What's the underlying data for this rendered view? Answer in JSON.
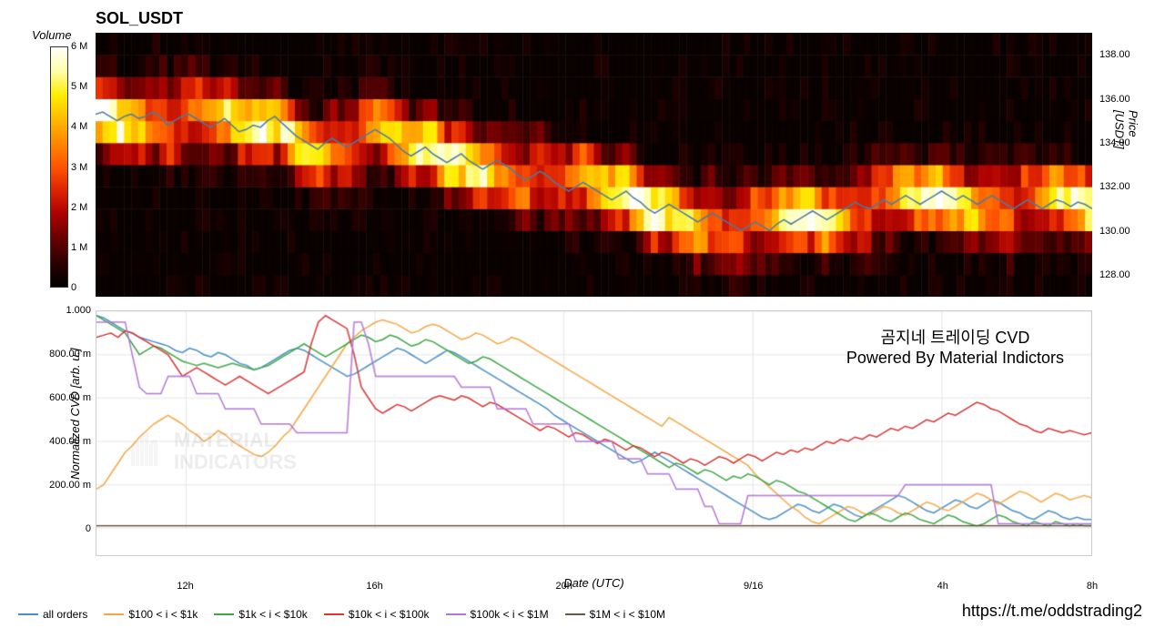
{
  "title": "SOL_USDT",
  "colorbar": {
    "label": "Volume",
    "ticks": [
      "6 M",
      "5 M",
      "4 M",
      "3 M",
      "2 M",
      "1 M",
      "0"
    ],
    "max": 6000000,
    "gradient": [
      "#000000",
      "#2c0000",
      "#660000",
      "#aa0000",
      "#dd2200",
      "#ff5500",
      "#ff8800",
      "#ffbb00",
      "#ffee00",
      "#ffffaa",
      "#ffffff"
    ]
  },
  "heatmap": {
    "type": "heatmap",
    "price_label": "Price [USDT]",
    "price_ticks": [
      138.0,
      136.0,
      134.0,
      132.0,
      130.0,
      128.0
    ],
    "price_range": [
      127.0,
      139.0
    ],
    "time_bins": 140,
    "price_bins": 12,
    "background_color": "#ffffff",
    "price_line_color": "#4a7ba6",
    "price_line_width": 1.5,
    "price_series": [
      135.3,
      135.4,
      135.2,
      135.0,
      135.2,
      135.3,
      135.1,
      135.2,
      135.4,
      135.2,
      134.8,
      135.0,
      135.2,
      135.3,
      135.1,
      134.9,
      134.7,
      134.9,
      135.1,
      134.8,
      134.5,
      134.6,
      134.8,
      134.7,
      135.0,
      135.2,
      134.9,
      134.6,
      134.3,
      134.1,
      133.9,
      133.7,
      134.0,
      134.2,
      134.0,
      133.8,
      134.0,
      134.2,
      134.4,
      134.6,
      134.4,
      134.2,
      133.9,
      133.6,
      133.4,
      133.6,
      133.8,
      133.5,
      133.3,
      133.1,
      133.3,
      133.5,
      133.2,
      133.0,
      132.8,
      133.0,
      133.2,
      133.0,
      132.8,
      132.5,
      132.3,
      132.5,
      132.7,
      132.5,
      132.2,
      132.0,
      131.8,
      132.0,
      132.2,
      132.0,
      131.8,
      131.6,
      131.4,
      131.6,
      131.8,
      131.5,
      131.3,
      131.0,
      130.8,
      131.0,
      131.2,
      131.0,
      130.8,
      130.6,
      130.4,
      130.6,
      130.8,
      130.6,
      130.4,
      130.2,
      130.0,
      130.2,
      130.4,
      130.2,
      130.0,
      130.3,
      130.5,
      130.3,
      130.5,
      130.7,
      130.9,
      130.7,
      130.5,
      130.7,
      130.9,
      131.1,
      131.3,
      131.1,
      131.0,
      131.2,
      131.4,
      131.2,
      131.4,
      131.6,
      131.4,
      131.2,
      131.4,
      131.6,
      131.8,
      131.6,
      131.4,
      131.6,
      131.4,
      131.2,
      131.4,
      131.6,
      131.4,
      131.2,
      131.0,
      131.2,
      131.4,
      131.2,
      131.0,
      131.2,
      131.4,
      131.3,
      131.1,
      131.3,
      131.2,
      131.0
    ]
  },
  "cvd": {
    "type": "line",
    "ylabel": "Normalized CVD [arb. u.]",
    "ylim": [
      0,
      1.0
    ],
    "yticks": [
      {
        "v": 1.0,
        "label": "1.000"
      },
      {
        "v": 0.8,
        "label": "800.00 m"
      },
      {
        "v": 0.6,
        "label": "600.00 m"
      },
      {
        "v": 0.4,
        "label": "400.00 m"
      },
      {
        "v": 0.2,
        "label": "200.00 m"
      },
      {
        "v": 0.0,
        "label": "0"
      }
    ],
    "grid_color": "#e5e5e5",
    "background_color": "#ffffff",
    "line_width": 1.5,
    "series": [
      {
        "name": "all orders",
        "color": "#4a8fc7",
        "data": [
          0.98,
          0.97,
          0.95,
          0.93,
          0.91,
          0.9,
          0.88,
          0.87,
          0.86,
          0.85,
          0.84,
          0.82,
          0.81,
          0.83,
          0.82,
          0.8,
          0.79,
          0.81,
          0.8,
          0.78,
          0.76,
          0.75,
          0.73,
          0.74,
          0.76,
          0.78,
          0.8,
          0.82,
          0.83,
          0.82,
          0.8,
          0.78,
          0.76,
          0.74,
          0.72,
          0.7,
          0.71,
          0.73,
          0.75,
          0.77,
          0.79,
          0.81,
          0.83,
          0.82,
          0.8,
          0.78,
          0.76,
          0.78,
          0.8,
          0.82,
          0.81,
          0.79,
          0.77,
          0.75,
          0.73,
          0.71,
          0.69,
          0.67,
          0.65,
          0.63,
          0.61,
          0.59,
          0.57,
          0.55,
          0.52,
          0.5,
          0.48,
          0.46,
          0.44,
          0.42,
          0.4,
          0.38,
          0.36,
          0.34,
          0.32,
          0.3,
          0.31,
          0.33,
          0.35,
          0.33,
          0.31,
          0.29,
          0.27,
          0.25,
          0.23,
          0.21,
          0.19,
          0.17,
          0.15,
          0.13,
          0.11,
          0.09,
          0.07,
          0.05,
          0.04,
          0.05,
          0.07,
          0.09,
          0.11,
          0.1,
          0.08,
          0.07,
          0.09,
          0.11,
          0.1,
          0.08,
          0.06,
          0.05,
          0.07,
          0.09,
          0.11,
          0.13,
          0.15,
          0.14,
          0.12,
          0.1,
          0.08,
          0.07,
          0.09,
          0.11,
          0.13,
          0.12,
          0.1,
          0.09,
          0.11,
          0.13,
          0.12,
          0.1,
          0.08,
          0.07,
          0.05,
          0.04,
          0.06,
          0.08,
          0.07,
          0.05,
          0.04,
          0.05,
          0.04,
          0.04
        ]
      },
      {
        "name": "$100 < i < $1k",
        "color": "#f5a742",
        "data": [
          0.18,
          0.2,
          0.25,
          0.3,
          0.35,
          0.38,
          0.42,
          0.45,
          0.48,
          0.5,
          0.52,
          0.5,
          0.48,
          0.45,
          0.43,
          0.4,
          0.42,
          0.45,
          0.43,
          0.4,
          0.38,
          0.36,
          0.34,
          0.33,
          0.35,
          0.38,
          0.42,
          0.45,
          0.5,
          0.55,
          0.6,
          0.65,
          0.7,
          0.75,
          0.8,
          0.85,
          0.88,
          0.91,
          0.93,
          0.95,
          0.96,
          0.95,
          0.94,
          0.92,
          0.9,
          0.91,
          0.93,
          0.94,
          0.93,
          0.91,
          0.89,
          0.87,
          0.88,
          0.9,
          0.89,
          0.87,
          0.85,
          0.86,
          0.88,
          0.87,
          0.85,
          0.83,
          0.81,
          0.79,
          0.77,
          0.75,
          0.73,
          0.71,
          0.69,
          0.67,
          0.65,
          0.63,
          0.61,
          0.59,
          0.57,
          0.55,
          0.53,
          0.51,
          0.49,
          0.47,
          0.51,
          0.49,
          0.47,
          0.45,
          0.43,
          0.41,
          0.39,
          0.37,
          0.35,
          0.33,
          0.31,
          0.29,
          0.25,
          0.22,
          0.19,
          0.16,
          0.13,
          0.1,
          0.08,
          0.05,
          0.03,
          0.02,
          0.04,
          0.06,
          0.08,
          0.1,
          0.09,
          0.07,
          0.06,
          0.08,
          0.1,
          0.09,
          0.07,
          0.06,
          0.08,
          0.1,
          0.12,
          0.11,
          0.09,
          0.08,
          0.1,
          0.12,
          0.14,
          0.16,
          0.15,
          0.13,
          0.11,
          0.13,
          0.15,
          0.17,
          0.16,
          0.14,
          0.12,
          0.14,
          0.16,
          0.15,
          0.13,
          0.14,
          0.15,
          0.14
        ]
      },
      {
        "name": "$1k < i < $10k",
        "color": "#3ba843",
        "data": [
          0.98,
          0.96,
          0.94,
          0.92,
          0.9,
          0.85,
          0.8,
          0.82,
          0.84,
          0.83,
          0.81,
          0.79,
          0.77,
          0.76,
          0.75,
          0.76,
          0.75,
          0.74,
          0.75,
          0.76,
          0.75,
          0.74,
          0.73,
          0.74,
          0.75,
          0.77,
          0.79,
          0.81,
          0.83,
          0.85,
          0.83,
          0.81,
          0.79,
          0.81,
          0.83,
          0.85,
          0.87,
          0.89,
          0.88,
          0.86,
          0.87,
          0.89,
          0.88,
          0.86,
          0.84,
          0.85,
          0.87,
          0.86,
          0.84,
          0.82,
          0.8,
          0.78,
          0.76,
          0.77,
          0.79,
          0.78,
          0.76,
          0.74,
          0.72,
          0.7,
          0.68,
          0.66,
          0.64,
          0.62,
          0.6,
          0.58,
          0.56,
          0.54,
          0.52,
          0.5,
          0.48,
          0.46,
          0.44,
          0.42,
          0.4,
          0.38,
          0.36,
          0.34,
          0.32,
          0.3,
          0.28,
          0.3,
          0.29,
          0.27,
          0.25,
          0.27,
          0.26,
          0.24,
          0.22,
          0.24,
          0.23,
          0.25,
          0.24,
          0.22,
          0.2,
          0.22,
          0.21,
          0.19,
          0.17,
          0.16,
          0.14,
          0.12,
          0.1,
          0.08,
          0.06,
          0.04,
          0.03,
          0.05,
          0.07,
          0.06,
          0.04,
          0.03,
          0.05,
          0.07,
          0.06,
          0.04,
          0.03,
          0.02,
          0.04,
          0.06,
          0.05,
          0.03,
          0.02,
          0.01,
          0.02,
          0.04,
          0.06,
          0.05,
          0.03,
          0.02,
          0.01,
          0.03,
          0.02,
          0.01,
          0.03,
          0.02,
          0.01,
          0.02,
          0.01,
          0.01
        ]
      },
      {
        "name": "$10k < i < $100k",
        "color": "#d93636",
        "data": [
          0.88,
          0.89,
          0.9,
          0.88,
          0.91,
          0.9,
          0.88,
          0.86,
          0.84,
          0.82,
          0.8,
          0.75,
          0.7,
          0.72,
          0.74,
          0.72,
          0.7,
          0.68,
          0.66,
          0.68,
          0.7,
          0.68,
          0.66,
          0.64,
          0.62,
          0.64,
          0.66,
          0.68,
          0.7,
          0.72,
          0.85,
          0.95,
          0.98,
          0.96,
          0.94,
          0.92,
          0.8,
          0.65,
          0.6,
          0.55,
          0.53,
          0.55,
          0.57,
          0.56,
          0.54,
          0.56,
          0.58,
          0.6,
          0.61,
          0.6,
          0.59,
          0.61,
          0.6,
          0.58,
          0.56,
          0.58,
          0.57,
          0.55,
          0.53,
          0.51,
          0.49,
          0.47,
          0.45,
          0.47,
          0.46,
          0.44,
          0.42,
          0.44,
          0.43,
          0.41,
          0.39,
          0.41,
          0.4,
          0.38,
          0.36,
          0.38,
          0.37,
          0.35,
          0.33,
          0.35,
          0.34,
          0.32,
          0.3,
          0.32,
          0.31,
          0.29,
          0.31,
          0.33,
          0.32,
          0.3,
          0.32,
          0.34,
          0.33,
          0.31,
          0.33,
          0.35,
          0.34,
          0.36,
          0.35,
          0.37,
          0.36,
          0.38,
          0.4,
          0.39,
          0.41,
          0.4,
          0.42,
          0.41,
          0.43,
          0.42,
          0.44,
          0.46,
          0.45,
          0.47,
          0.46,
          0.48,
          0.5,
          0.49,
          0.51,
          0.53,
          0.52,
          0.54,
          0.56,
          0.58,
          0.57,
          0.55,
          0.54,
          0.52,
          0.5,
          0.48,
          0.47,
          0.45,
          0.44,
          0.46,
          0.45,
          0.44,
          0.45,
          0.44,
          0.43,
          0.44
        ]
      },
      {
        "name": "$100k < i < $1M",
        "color": "#b577d9",
        "data": [
          0.95,
          0.95,
          0.95,
          0.95,
          0.95,
          0.8,
          0.65,
          0.62,
          0.62,
          0.62,
          0.7,
          0.7,
          0.7,
          0.7,
          0.62,
          0.62,
          0.62,
          0.62,
          0.55,
          0.55,
          0.55,
          0.55,
          0.55,
          0.48,
          0.48,
          0.48,
          0.48,
          0.48,
          0.44,
          0.44,
          0.44,
          0.44,
          0.44,
          0.44,
          0.44,
          0.44,
          0.95,
          0.95,
          0.85,
          0.7,
          0.7,
          0.7,
          0.7,
          0.7,
          0.7,
          0.7,
          0.7,
          0.7,
          0.7,
          0.7,
          0.7,
          0.65,
          0.65,
          0.65,
          0.65,
          0.65,
          0.55,
          0.55,
          0.55,
          0.55,
          0.55,
          0.48,
          0.48,
          0.48,
          0.48,
          0.48,
          0.48,
          0.4,
          0.4,
          0.4,
          0.4,
          0.4,
          0.4,
          0.32,
          0.32,
          0.32,
          0.32,
          0.25,
          0.25,
          0.25,
          0.25,
          0.18,
          0.18,
          0.18,
          0.18,
          0.1,
          0.1,
          0.02,
          0.02,
          0.02,
          0.02,
          0.15,
          0.15,
          0.15,
          0.15,
          0.15,
          0.15,
          0.15,
          0.15,
          0.15,
          0.15,
          0.15,
          0.15,
          0.15,
          0.15,
          0.15,
          0.15,
          0.15,
          0.15,
          0.15,
          0.15,
          0.15,
          0.15,
          0.2,
          0.2,
          0.2,
          0.2,
          0.2,
          0.2,
          0.2,
          0.2,
          0.2,
          0.2,
          0.2,
          0.2,
          0.2,
          0.02,
          0.02,
          0.02,
          0.02,
          0.02,
          0.02,
          0.02,
          0.02,
          0.02,
          0.02,
          0.02,
          0.02,
          0.02,
          0.02
        ]
      },
      {
        "name": "$1M < i < $10M",
        "color": "#6b5742",
        "data": [
          0.01,
          0.01,
          0.01,
          0.01,
          0.01,
          0.01,
          0.01,
          0.01,
          0.01,
          0.01,
          0.01,
          0.01,
          0.01,
          0.01,
          0.01,
          0.01,
          0.01,
          0.01,
          0.01,
          0.01,
          0.01,
          0.01,
          0.01,
          0.01,
          0.01,
          0.01,
          0.01,
          0.01,
          0.01,
          0.01,
          0.01,
          0.01,
          0.01,
          0.01,
          0.01,
          0.01,
          0.01,
          0.01,
          0.01,
          0.01,
          0.01,
          0.01,
          0.01,
          0.01,
          0.01,
          0.01,
          0.01,
          0.01,
          0.01,
          0.01,
          0.01,
          0.01,
          0.01,
          0.01,
          0.01,
          0.01,
          0.01,
          0.01,
          0.01,
          0.01,
          0.01,
          0.01,
          0.01,
          0.01,
          0.01,
          0.01,
          0.01,
          0.01,
          0.01,
          0.01,
          0.01,
          0.01,
          0.01,
          0.01,
          0.01,
          0.01,
          0.01,
          0.01,
          0.01,
          0.01,
          0.01,
          0.01,
          0.01,
          0.01,
          0.01,
          0.01,
          0.01,
          0.01,
          0.01,
          0.01,
          0.01,
          0.01,
          0.01,
          0.01,
          0.01,
          0.01,
          0.01,
          0.01,
          0.01,
          0.01,
          0.01,
          0.01,
          0.01,
          0.01,
          0.01,
          0.01,
          0.01,
          0.01,
          0.01,
          0.01,
          0.01,
          0.01,
          0.01,
          0.01,
          0.01,
          0.01,
          0.01,
          0.01,
          0.01,
          0.01,
          0.01,
          0.01,
          0.01,
          0.01,
          0.01,
          0.01,
          0.01,
          0.01,
          0.01,
          0.01,
          0.01,
          0.01,
          0.01,
          0.01,
          0.01,
          0.01,
          0.01,
          0.01,
          0.01,
          0.01
        ]
      }
    ]
  },
  "xaxis": {
    "label": "Date (UTC)",
    "ticks": [
      {
        "pos": 0.09,
        "label": "12h"
      },
      {
        "pos": 0.28,
        "label": "16h"
      },
      {
        "pos": 0.47,
        "label": "20h"
      },
      {
        "pos": 0.66,
        "label": "9/16"
      },
      {
        "pos": 0.85,
        "label": "4h"
      },
      {
        "pos": 1.0,
        "label": "8h"
      }
    ]
  },
  "legend_items": [
    {
      "label": "all orders",
      "color": "#4a8fc7"
    },
    {
      "label": "$100 < i < $1k",
      "color": "#f5a742"
    },
    {
      "label": "$1k < i < $10k",
      "color": "#3ba843"
    },
    {
      "label": "$10k < i < $100k",
      "color": "#d93636"
    },
    {
      "label": "$100k < i < $1M",
      "color": "#b577d9"
    },
    {
      "label": "$1M < i < $10M",
      "color": "#6b5742"
    }
  ],
  "watermark": {
    "text1": "MATERIAL",
    "text2": "INDICATORS"
  },
  "annotation": {
    "line1": "곰지네 트레이딩 CVD",
    "line2": "Powered By Material Indictors"
  },
  "footer_link": "https://t.me/oddstrading2"
}
